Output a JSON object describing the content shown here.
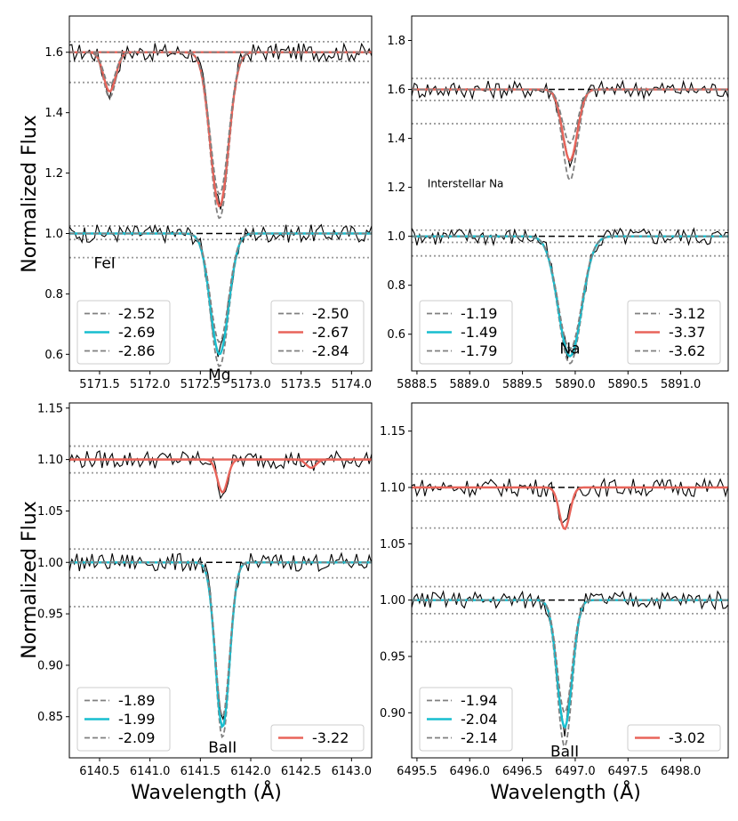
{
  "colors": {
    "obs": "#000000",
    "cyan": "#17becf",
    "red": "#e8645a",
    "grey": "#808080",
    "dotted": "#999999",
    "dashed": "#000000"
  },
  "ylabel": "Normalized Flux",
  "xlabel": "Wavelength (Å)",
  "chart_data": [
    {
      "type": "line",
      "panel": "top-left",
      "xlim": [
        5171.2,
        5174.2
      ],
      "ylim": [
        0.545,
        1.72
      ],
      "xticks": [
        5171.5,
        5172.0,
        5172.5,
        5173.0,
        5173.5,
        5174.0
      ],
      "xtick_labels": [
        "5171.5",
        "5172.0",
        "5172.5",
        "5173.0",
        "5173.5",
        "5174.0"
      ],
      "yticks": [
        0.6,
        0.8,
        1.0,
        1.2,
        1.4,
        1.6
      ],
      "ytick_labels": [
        "0.6",
        "0.8",
        "1.0",
        "1.2",
        "1.4",
        "1.6"
      ],
      "continua": [
        1.6,
        1.0
      ],
      "dotted_levels": [
        1.635,
        1.57,
        1.5,
        1.025,
        0.98,
        0.92
      ],
      "lines": [
        {
          "center": 5172.69,
          "level": 1.0,
          "sigma": 0.09,
          "depths": [
            0.44,
            0.4,
            0.36
          ],
          "fit": "cyan"
        },
        {
          "center": 5172.69,
          "level": 1.6,
          "sigma": 0.09,
          "depths": [
            0.55,
            0.51,
            0.47
          ],
          "fit": "red"
        },
        {
          "center": 5171.6,
          "level": 1.6,
          "sigma": 0.06,
          "depths": [
            0.15,
            0.13,
            0.11
          ],
          "fit": "red"
        }
      ],
      "annotations": [
        {
          "text": "FeI",
          "x": 5171.55,
          "y": 0.885,
          "size": "large"
        },
        {
          "text": "Mg",
          "x": 5172.69,
          "y": 0.515,
          "size": "large"
        }
      ],
      "legends": [
        {
          "position": "lower-left",
          "entries": [
            {
              "label": "-2.52",
              "style": "dash"
            },
            {
              "label": "-2.69",
              "style": "cyan"
            },
            {
              "label": "-2.86",
              "style": "dash"
            }
          ]
        },
        {
          "position": "lower-right",
          "entries": [
            {
              "label": "-2.50",
              "style": "dash"
            },
            {
              "label": "-2.67",
              "style": "red"
            },
            {
              "label": "-2.84",
              "style": "dash"
            }
          ]
        }
      ]
    },
    {
      "type": "line",
      "panel": "top-right",
      "xlim": [
        5888.45,
        5891.45
      ],
      "ylim": [
        0.45,
        1.9
      ],
      "xticks": [
        5888.5,
        5889.0,
        5889.5,
        5890.0,
        5890.5,
        5891.0
      ],
      "xtick_labels": [
        "5888.5",
        "5889.0",
        "5889.5",
        "5890.0",
        "5890.5",
        "5891.0"
      ],
      "yticks": [
        0.6,
        0.8,
        1.0,
        1.2,
        1.4,
        1.6,
        1.8
      ],
      "ytick_labels": [
        "0.6",
        "0.8",
        "1.0",
        "1.2",
        "1.4",
        "1.6",
        "1.8"
      ],
      "continua": [
        1.6,
        1.0
      ],
      "dotted_levels": [
        1.645,
        1.555,
        1.46,
        1.025,
        0.975,
        0.92
      ],
      "lines": [
        {
          "center": 5889.95,
          "level": 1.0,
          "sigma": 0.11,
          "depths": [
            0.52,
            0.49,
            0.46
          ],
          "fit": "cyan"
        },
        {
          "center": 5889.95,
          "level": 1.6,
          "sigma": 0.07,
          "depths": [
            0.37,
            0.29,
            0.22
          ],
          "fit": "red"
        }
      ],
      "annotations": [
        {
          "text": "Interstellar Na",
          "x": 5888.6,
          "y": 1.2,
          "size": "small"
        },
        {
          "text": "Na",
          "x": 5889.95,
          "y": 0.52,
          "size": "large"
        }
      ],
      "legends": [
        {
          "position": "lower-left",
          "entries": [
            {
              "label": "-1.19",
              "style": "dash"
            },
            {
              "label": "-1.49",
              "style": "cyan"
            },
            {
              "label": "-1.79",
              "style": "dash"
            }
          ]
        },
        {
          "position": "lower-right",
          "entries": [
            {
              "label": "-3.12",
              "style": "dash"
            },
            {
              "label": "-3.37",
              "style": "red"
            },
            {
              "label": "-3.62",
              "style": "dash"
            }
          ]
        }
      ]
    },
    {
      "type": "line",
      "panel": "bottom-left",
      "xlim": [
        6140.2,
        6143.2
      ],
      "ylim": [
        0.81,
        1.155
      ],
      "xticks": [
        6140.5,
        6141.0,
        6141.5,
        6142.0,
        6142.5,
        6143.0
      ],
      "xtick_labels": [
        "6140.5",
        "6141.0",
        "6141.5",
        "6142.0",
        "6142.5",
        "6143.0"
      ],
      "yticks": [
        0.85,
        0.9,
        0.95,
        1.0,
        1.05,
        1.1,
        1.15
      ],
      "ytick_labels": [
        "0.85",
        "0.90",
        "0.95",
        "1.00",
        "1.05",
        "1.10",
        "1.15"
      ],
      "continua": [
        1.1,
        1.0
      ],
      "dotted_levels": [
        1.113,
        1.087,
        1.06,
        1.013,
        0.985,
        0.957
      ],
      "lines": [
        {
          "center": 6141.72,
          "level": 1.0,
          "sigma": 0.07,
          "depths": [
            0.17,
            0.16,
            0.15
          ],
          "fit": "cyan"
        },
        {
          "center": 6141.72,
          "level": 1.1,
          "sigma": 0.05,
          "depths": [
            0.032
          ],
          "fit": "red"
        },
        {
          "center": 6142.6,
          "level": 1.1,
          "sigma": 0.05,
          "depths": [
            0.008
          ],
          "fit": "red"
        }
      ],
      "annotations": [
        {
          "text": "BaII",
          "x": 6141.72,
          "y": 0.815,
          "size": "large"
        }
      ],
      "legends": [
        {
          "position": "lower-left",
          "entries": [
            {
              "label": "-1.89",
              "style": "dash"
            },
            {
              "label": "-1.99",
              "style": "cyan"
            },
            {
              "label": "-2.09",
              "style": "dash"
            }
          ]
        },
        {
          "position": "lower-right",
          "entries": [
            {
              "label": "-3.22",
              "style": "red"
            }
          ]
        }
      ]
    },
    {
      "type": "line",
      "panel": "bottom-right",
      "xlim": [
        6495.45,
        6498.45
      ],
      "ylim": [
        0.86,
        1.175
      ],
      "xticks": [
        6495.5,
        6496.0,
        6496.5,
        6497.0,
        6497.5,
        6498.0
      ],
      "xtick_labels": [
        "6495.5",
        "6496.0",
        "6496.5",
        "6497.0",
        "6497.5",
        "6498.0"
      ],
      "yticks": [
        0.9,
        0.95,
        1.0,
        1.05,
        1.1,
        1.15
      ],
      "ytick_labels": [
        "0.90",
        "0.95",
        "1.00",
        "1.05",
        "1.10",
        "1.15"
      ],
      "continua": [
        1.1,
        1.0
      ],
      "dotted_levels": [
        1.112,
        1.088,
        1.064,
        1.012,
        0.988,
        0.963
      ],
      "lines": [
        {
          "center": 6496.9,
          "level": 1.0,
          "sigma": 0.07,
          "depths": [
            0.13,
            0.113,
            0.1
          ],
          "fit": "cyan"
        },
        {
          "center": 6496.9,
          "level": 1.1,
          "sigma": 0.05,
          "depths": [
            0.037
          ],
          "fit": "red"
        }
      ],
      "annotations": [
        {
          "text": "BaII",
          "x": 6496.9,
          "y": 0.861,
          "size": "large"
        }
      ],
      "legends": [
        {
          "position": "lower-left",
          "entries": [
            {
              "label": "-1.94",
              "style": "dash"
            },
            {
              "label": "-2.04",
              "style": "cyan"
            },
            {
              "label": "-2.14",
              "style": "dash"
            }
          ]
        },
        {
          "position": "lower-right",
          "entries": [
            {
              "label": "-3.02",
              "style": "red"
            }
          ]
        }
      ]
    }
  ]
}
